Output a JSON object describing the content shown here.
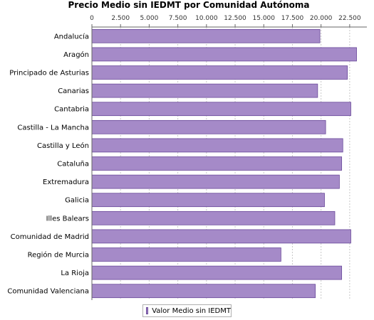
{
  "chart_data": {
    "type": "bar",
    "orientation": "horizontal",
    "title": "Precio Medio sin IEDMT por Comunidad Autónoma",
    "categories": [
      "Andalucía",
      "Aragón",
      "Principado de Asturias",
      "Canarias",
      "Cantabria",
      "Castilla - La Mancha",
      "Castilla y León",
      "Cataluña",
      "Extremadura",
      "Galicia",
      "Illes Balears",
      "Comunidad de Madrid",
      "Región de Murcia",
      "La Rioja",
      "Comunidad Valenciana"
    ],
    "series": [
      {
        "name": "Valor Medio sin IEDMT",
        "values": [
          19900,
          23100,
          22300,
          19700,
          22600,
          20400,
          21900,
          21800,
          21600,
          20300,
          21200,
          22600,
          16500,
          21800,
          19500
        ]
      }
    ],
    "xlim": [
      0,
      24000
    ],
    "ticks": [
      0,
      2500,
      5000,
      7500,
      10000,
      12500,
      15000,
      17500,
      20000,
      22500
    ],
    "tick_labels": [
      "0",
      "2.500",
      "5.000",
      "7.500",
      "10.000",
      "12.500",
      "15.000",
      "17.500",
      "20.000",
      "22.500"
    ],
    "axis_position": "top",
    "grid": true,
    "legend_position": "bottom",
    "bar_color": "#a58ac8"
  }
}
